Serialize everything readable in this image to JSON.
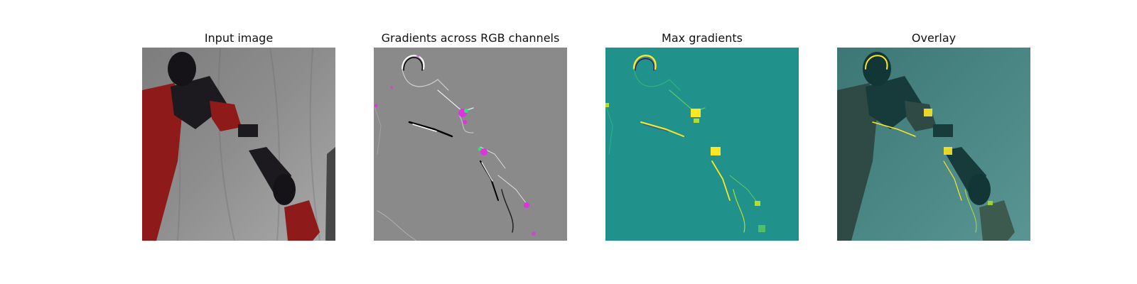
{
  "figure": {
    "panels": [
      {
        "title": "Input image"
      },
      {
        "title": "Gradients across RGB channels"
      },
      {
        "title": "Max gradients"
      },
      {
        "title": "Overlay"
      }
    ]
  },
  "colors": {
    "background": "#ffffff",
    "gray_backdrop": "#8a8a8a",
    "viridis_mid": "#21918c",
    "viridis_high": "#fde725",
    "robot_red": "#8e1a1a",
    "saliency_magenta": "#e033e0",
    "saliency_green": "#33e070"
  }
}
